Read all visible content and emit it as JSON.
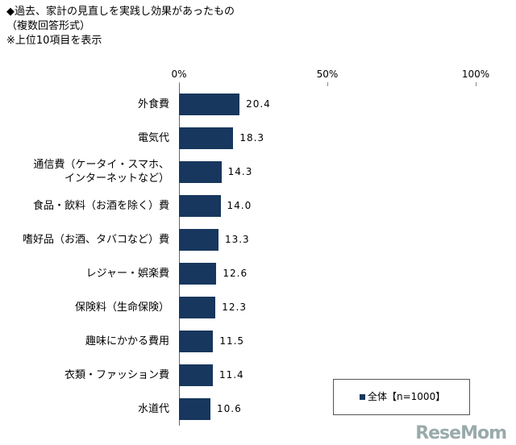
{
  "chart_data": {
    "type": "bar",
    "orientation": "horizontal",
    "title": "◆過去、家計の見直しを実践し効果があったもの",
    "subtitle": "（複数回答形式）",
    "note": "※上位10項目を表示",
    "categories": [
      "外食費",
      "電気代",
      "通信費（ケータイ・スマホ、\nインターネットなど）",
      "食品・飲料（お酒を除く）費",
      "嗜好品（お酒、タバコなど）費",
      "レジャー・娯楽費",
      "保険料（生命保険）",
      "趣味にかかる費用",
      "衣類・ファッション費",
      "水道代"
    ],
    "series": [
      {
        "name": "全体【n=1000】",
        "color": "#17375e",
        "values": [
          20.4,
          18.3,
          14.3,
          14.0,
          13.3,
          12.6,
          12.3,
          11.5,
          11.4,
          10.6
        ],
        "value_labels": [
          "20.4",
          "18.3",
          "14.3",
          "14.0",
          "13.3",
          "12.6",
          "12.3",
          "11.5",
          "11.4",
          "10.6"
        ]
      }
    ],
    "xlim": [
      0,
      100
    ],
    "xticks": [
      {
        "value": 0,
        "label": "0%"
      },
      {
        "value": 50,
        "label": "50%"
      },
      {
        "value": 100,
        "label": "100%"
      }
    ],
    "legend": "bottom-right",
    "watermark": "ReseMom"
  }
}
